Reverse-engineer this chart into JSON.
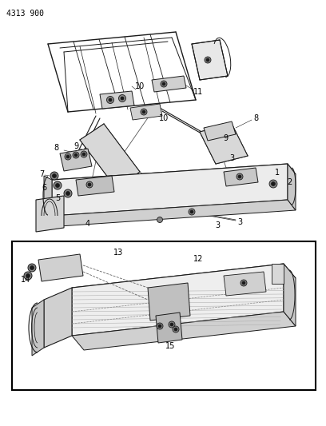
{
  "part_number": "4313 900",
  "bg_color": "#f5f5f5",
  "lc": "#1a1a1a",
  "fig_width": 4.08,
  "fig_height": 5.33,
  "dpi": 100,
  "font_size": 7,
  "font_size_pn": 7
}
